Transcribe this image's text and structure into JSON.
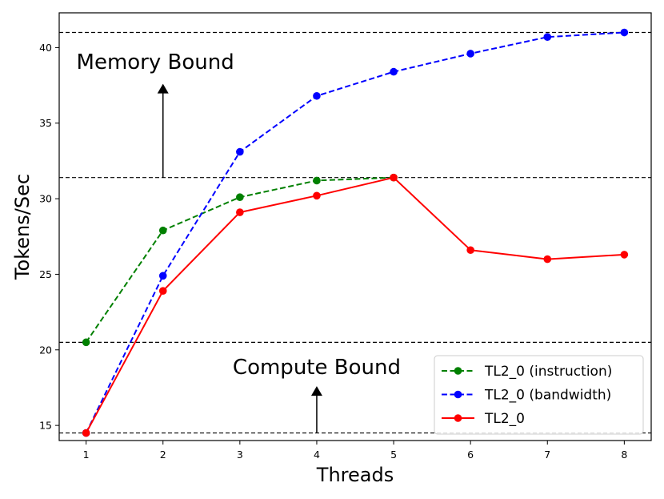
{
  "chart_data": {
    "type": "line",
    "xlabel": "Threads",
    "ylabel": "Tokens/Sec",
    "xlim": [
      0.65,
      8.35
    ],
    "ylim": [
      14.0,
      42.3
    ],
    "x": [
      1,
      2,
      3,
      4,
      5,
      6,
      7,
      8
    ],
    "xticks": [
      1,
      2,
      3,
      4,
      5,
      6,
      7,
      8
    ],
    "yticks": [
      15,
      20,
      25,
      30,
      35,
      40
    ],
    "grid": false,
    "legend_position": "bottom-right",
    "series": [
      {
        "name": "TL2_0 (instruction)",
        "color": "#008000",
        "linestyle": "dashed",
        "marker": "circle",
        "x": [
          1,
          2,
          3,
          4,
          5
        ],
        "values": [
          20.5,
          27.9,
          30.1,
          31.2,
          31.4
        ]
      },
      {
        "name": "TL2_0 (bandwidth)",
        "color": "#0000ff",
        "linestyle": "dashed",
        "marker": "circle",
        "x": [
          1,
          2,
          3,
          4,
          5,
          6,
          7,
          8
        ],
        "values": [
          14.5,
          24.9,
          33.1,
          36.8,
          38.4,
          39.6,
          40.7,
          41.0
        ]
      },
      {
        "name": "TL2_0",
        "color": "#ff0000",
        "linestyle": "solid",
        "marker": "circle",
        "x": [
          1,
          2,
          3,
          4,
          5,
          6,
          7,
          8
        ],
        "values": [
          14.5,
          23.9,
          29.1,
          30.2,
          31.4,
          26.6,
          26.0,
          26.3
        ]
      }
    ],
    "reference_lines": [
      41.0,
      31.4,
      20.5,
      14.5
    ],
    "annotations": [
      {
        "text": "Memory Bound",
        "arrow_x": 2,
        "arrow_from": 31.4,
        "arrow_to": 37.6,
        "text_x": 1.9,
        "text_y": 38.6
      },
      {
        "text": "Compute Bound",
        "arrow_x": 4,
        "arrow_from": 14.5,
        "arrow_to": 17.6,
        "text_x": 4.0,
        "text_y": 18.4
      }
    ]
  }
}
